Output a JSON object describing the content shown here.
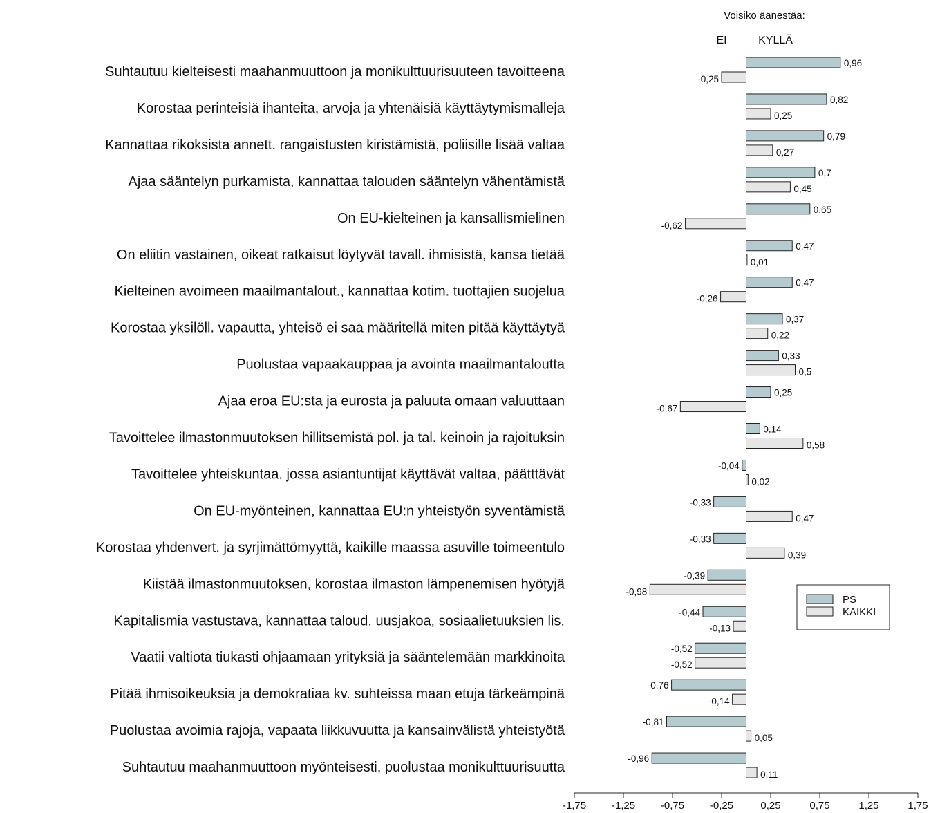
{
  "chart_data": {
    "type": "bar",
    "orientation": "horizontal",
    "header": {
      "title": "Voisiko äänestää:",
      "negative_label": "EI",
      "positive_label": "KYLLÄ"
    },
    "categories": [
      "Suhtautuu kielteisesti maahanmuuttoon ja monikulttuurisuuteen tavoitteena",
      "Korostaa perinteisiä ihanteita, arvoja ja yhtenäisiä käyttäytymismalleja",
      "Kannattaa rikoksista annett. rangaistusten kiristämistä, poliisille lisää valtaa",
      "Ajaa sääntelyn purkamista, kannattaa talouden sääntelyn vähentämistä",
      "On EU-kielteinen ja kansallismielinen",
      "On eliitin vastainen, oikeat ratkaisut löytyvät tavall. ihmisistä, kansa tietää",
      "Kielteinen avoimeen maailmantalout., kannattaa kotim. tuottajien suojelua",
      "Korostaa yksilöll. vapautta, yhteisö ei saa määritellä miten pitää käyttäytyä",
      "Puolustaa vapaakauppaa ja avointa maailmantaloutta",
      "Ajaa eroa EU:sta ja eurosta ja paluuta omaan valuuttaan",
      "Tavoittelee ilmastonmuutoksen hillitsemistä pol. ja tal. keinoin ja rajoituksin",
      "Tavoittelee yhteiskuntaa, jossa asiantuntijat käyttävät valtaa, päätttävät",
      "On EU-myönteinen, kannattaa EU:n yhteistyön syventämistä",
      "Korostaa yhdenvert. ja syrjimättömyyttä, kaikille maassa asuville toimeentulo",
      "Kiistää ilmastonmuutoksen, korostaa ilmaston lämpenemisen hyötyjä",
      "Kapitalismia vastustava, kannattaa taloud. uusjakoa, sosiaalietuuksien lis.",
      "Vaatii valtiota tiukasti ohjaamaan yrityksiä ja sääntelemään markkinoita",
      "Pitää ihmisoikeuksia ja demokratiaa kv. suhteissa maan etuja tärkeämpinä",
      "Puolustaa avoimia rajoja, vapaata liikkuvuutta ja kansainvälistä yhteistyötä",
      "Suhtautuu maahanmuuttoon myönteisesti, puolustaa monikulttuurisuutta"
    ],
    "series": [
      {
        "name": "PS",
        "color": "#b6cbcf",
        "values": [
          0.96,
          0.82,
          0.79,
          0.7,
          0.65,
          0.47,
          0.47,
          0.37,
          0.33,
          0.25,
          0.14,
          -0.04,
          -0.33,
          -0.33,
          -0.39,
          -0.44,
          -0.52,
          -0.76,
          -0.81,
          -0.96
        ],
        "labels": [
          "0,96",
          "0,82",
          "0,79",
          "0,7",
          "0,65",
          "0,47",
          "0,47",
          "0,37",
          "0,33",
          "0,25",
          "0,14",
          "-0,04",
          "-0,33",
          "-0,33",
          "-0,39",
          "-0,44",
          "-0,52",
          "-0,76",
          "-0,81",
          "-0,96"
        ]
      },
      {
        "name": "KAIKKI",
        "color": "#e6e6e6",
        "values": [
          -0.25,
          0.25,
          0.27,
          0.45,
          -0.62,
          0.01,
          -0.26,
          0.22,
          0.5,
          -0.67,
          0.58,
          0.02,
          0.47,
          0.39,
          -0.98,
          -0.13,
          -0.52,
          -0.14,
          0.05,
          0.11
        ],
        "labels": [
          "-0,25",
          "0,25",
          "0,27",
          "0,45",
          "-0,62",
          "0,01",
          "-0,26",
          "0,22",
          "0,5",
          "-0,67",
          "0,58",
          "0,02",
          "0,47",
          "0,39",
          "-0,98",
          "-0,13",
          "-0,52",
          "-0,14",
          "0,05",
          "0,11"
        ]
      }
    ],
    "xlim": [
      -1.75,
      1.75
    ],
    "x_ticks": [
      -1.75,
      -1.25,
      -0.75,
      -0.25,
      0.25,
      0.75,
      1.25,
      1.75
    ],
    "x_tick_labels": [
      "-1,75",
      "-1,25",
      "-0,75",
      "-0,25",
      "0,25",
      "0,75",
      "1,25",
      "1,75"
    ],
    "legend_position": "right",
    "grid": false
  }
}
